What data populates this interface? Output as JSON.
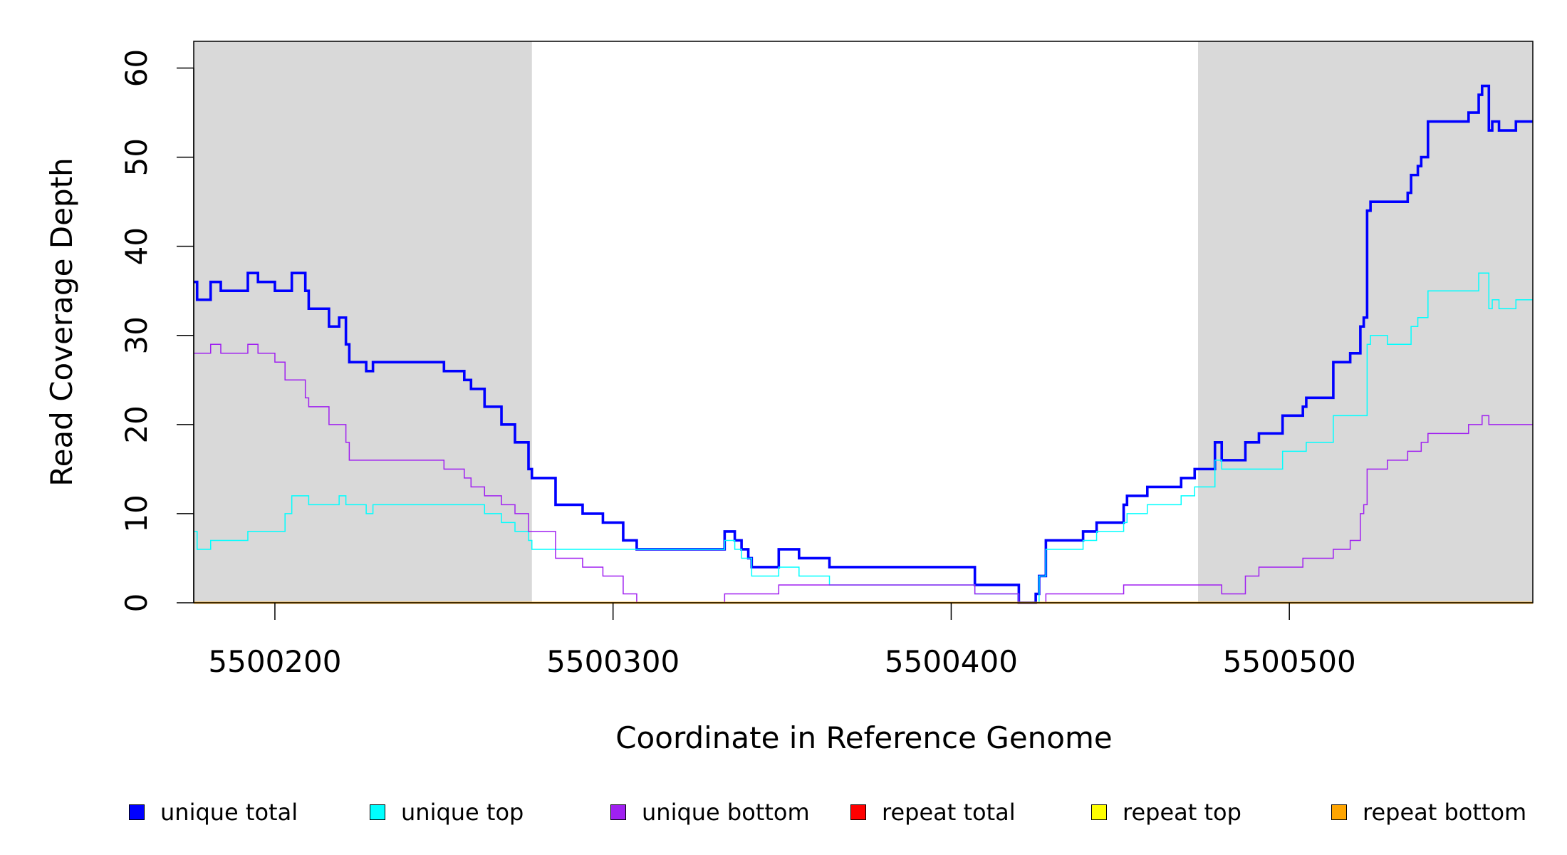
{
  "chart_data": {
    "type": "line",
    "step": true,
    "title": "",
    "xlabel": "Coordinate in Reference Genome",
    "ylabel": "Read Coverage Depth",
    "xlim": [
      5500176,
      5500572
    ],
    "ylim": [
      0,
      63
    ],
    "xticks": [
      5500200,
      5500300,
      5500400,
      5500500
    ],
    "xtick_labels": [
      "5500200",
      "5500300",
      "5500400",
      "5500500"
    ],
    "yticks": [
      0,
      10,
      20,
      30,
      40,
      50,
      60
    ],
    "ytick_labels": [
      "0",
      "10",
      "20",
      "30",
      "40",
      "50",
      "60"
    ],
    "grid": false,
    "legend_position": "bottom",
    "shaded_regions": [
      {
        "from": 5500176,
        "to": 5500276,
        "color": "#d9d9d9"
      },
      {
        "from": 5500473,
        "to": 5500572,
        "color": "#d9d9d9"
      }
    ],
    "series": [
      {
        "name": "unique total",
        "color": "#0000ff",
        "width": "bold",
        "points": [
          [
            5500176,
            36
          ],
          [
            5500177,
            34
          ],
          [
            5500181,
            36
          ],
          [
            5500184,
            35
          ],
          [
            5500192,
            37
          ],
          [
            5500195,
            36
          ],
          [
            5500200,
            35
          ],
          [
            5500205,
            37
          ],
          [
            5500209,
            35
          ],
          [
            5500210,
            33
          ],
          [
            5500216,
            31
          ],
          [
            5500219,
            32
          ],
          [
            5500221,
            29
          ],
          [
            5500222,
            27
          ],
          [
            5500227,
            26
          ],
          [
            5500229,
            27
          ],
          [
            5500250,
            26
          ],
          [
            5500256,
            25
          ],
          [
            5500258,
            24
          ],
          [
            5500262,
            22
          ],
          [
            5500267,
            20
          ],
          [
            5500271,
            18
          ],
          [
            5500275,
            15
          ],
          [
            5500276,
            14
          ],
          [
            5500283,
            11
          ],
          [
            5500291,
            10
          ],
          [
            5500297,
            9
          ],
          [
            5500303,
            7
          ],
          [
            5500307,
            6
          ],
          [
            5500333,
            8
          ],
          [
            5500336,
            7
          ],
          [
            5500338,
            6
          ],
          [
            5500340,
            5
          ],
          [
            5500341,
            4
          ],
          [
            5500349,
            6
          ],
          [
            5500355,
            5
          ],
          [
            5500364,
            4
          ],
          [
            5500407,
            2
          ],
          [
            5500420,
            0
          ],
          [
            5500425,
            1
          ],
          [
            5500426,
            3
          ],
          [
            5500428,
            7
          ],
          [
            5500439,
            8
          ],
          [
            5500443,
            9
          ],
          [
            5500451,
            11
          ],
          [
            5500452,
            12
          ],
          [
            5500458,
            13
          ],
          [
            5500468,
            14
          ],
          [
            5500472,
            15
          ],
          [
            5500478,
            18
          ],
          [
            5500480,
            16
          ],
          [
            5500487,
            18
          ],
          [
            5500491,
            19
          ],
          [
            5500498,
            21
          ],
          [
            5500504,
            22
          ],
          [
            5500505,
            23
          ],
          [
            5500513,
            27
          ],
          [
            5500518,
            28
          ],
          [
            5500521,
            31
          ],
          [
            5500522,
            32
          ],
          [
            5500523,
            44
          ],
          [
            5500524,
            45
          ],
          [
            5500535,
            46
          ],
          [
            5500536,
            48
          ],
          [
            5500538,
            49
          ],
          [
            5500539,
            50
          ],
          [
            5500541,
            54
          ],
          [
            5500553,
            55
          ],
          [
            5500556,
            57
          ],
          [
            5500557,
            58
          ],
          [
            5500559,
            53
          ],
          [
            5500560,
            54
          ],
          [
            5500562,
            53
          ],
          [
            5500567,
            54
          ]
        ]
      },
      {
        "name": "unique top",
        "color": "#00ffff",
        "width": "thin",
        "points": [
          [
            5500176,
            8
          ],
          [
            5500177,
            6
          ],
          [
            5500181,
            7
          ],
          [
            5500192,
            8
          ],
          [
            5500203,
            10
          ],
          [
            5500205,
            12
          ],
          [
            5500210,
            11
          ],
          [
            5500219,
            12
          ],
          [
            5500221,
            11
          ],
          [
            5500227,
            10
          ],
          [
            5500229,
            11
          ],
          [
            5500262,
            10
          ],
          [
            5500267,
            9
          ],
          [
            5500271,
            8
          ],
          [
            5500275,
            7
          ],
          [
            5500276,
            6
          ],
          [
            5500333,
            7
          ],
          [
            5500336,
            6
          ],
          [
            5500338,
            5
          ],
          [
            5500341,
            3
          ],
          [
            5500349,
            4
          ],
          [
            5500355,
            3
          ],
          [
            5500364,
            2
          ],
          [
            5500407,
            1
          ],
          [
            5500420,
            0
          ],
          [
            5500426,
            3
          ],
          [
            5500428,
            6
          ],
          [
            5500439,
            7
          ],
          [
            5500443,
            8
          ],
          [
            5500451,
            9
          ],
          [
            5500452,
            10
          ],
          [
            5500458,
            11
          ],
          [
            5500468,
            12
          ],
          [
            5500472,
            13
          ],
          [
            5500478,
            16
          ],
          [
            5500480,
            15
          ],
          [
            5500498,
            17
          ],
          [
            5500505,
            18
          ],
          [
            5500513,
            21
          ],
          [
            5500523,
            29
          ],
          [
            5500524,
            30
          ],
          [
            5500529,
            29
          ],
          [
            5500536,
            31
          ],
          [
            5500538,
            32
          ],
          [
            5500541,
            35
          ],
          [
            5500556,
            37
          ],
          [
            5500559,
            33
          ],
          [
            5500560,
            34
          ],
          [
            5500562,
            33
          ],
          [
            5500567,
            34
          ]
        ]
      },
      {
        "name": "unique bottom",
        "color": "#a020f0",
        "width": "thin",
        "points": [
          [
            5500176,
            28
          ],
          [
            5500181,
            29
          ],
          [
            5500184,
            28
          ],
          [
            5500192,
            29
          ],
          [
            5500195,
            28
          ],
          [
            5500200,
            27
          ],
          [
            5500203,
            25
          ],
          [
            5500209,
            23
          ],
          [
            5500210,
            22
          ],
          [
            5500216,
            20
          ],
          [
            5500221,
            18
          ],
          [
            5500222,
            16
          ],
          [
            5500250,
            15
          ],
          [
            5500256,
            14
          ],
          [
            5500258,
            13
          ],
          [
            5500262,
            12
          ],
          [
            5500267,
            11
          ],
          [
            5500271,
            10
          ],
          [
            5500275,
            8
          ],
          [
            5500283,
            5
          ],
          [
            5500291,
            4
          ],
          [
            5500297,
            3
          ],
          [
            5500303,
            1
          ],
          [
            5500307,
            0
          ],
          [
            5500333,
            1
          ],
          [
            5500349,
            2
          ],
          [
            5500407,
            1
          ],
          [
            5500420,
            0
          ],
          [
            5500428,
            1
          ],
          [
            5500451,
            2
          ],
          [
            5500480,
            1
          ],
          [
            5500487,
            3
          ],
          [
            5500491,
            4
          ],
          [
            5500504,
            5
          ],
          [
            5500513,
            6
          ],
          [
            5500518,
            7
          ],
          [
            5500521,
            10
          ],
          [
            5500522,
            11
          ],
          [
            5500523,
            15
          ],
          [
            5500529,
            16
          ],
          [
            5500535,
            17
          ],
          [
            5500539,
            18
          ],
          [
            5500541,
            19
          ],
          [
            5500553,
            20
          ],
          [
            5500557,
            21
          ],
          [
            5500559,
            20
          ]
        ]
      },
      {
        "name": "repeat total",
        "color": "#ff0000",
        "width": "thin",
        "points": [
          [
            5500176,
            0
          ]
        ]
      },
      {
        "name": "repeat top",
        "color": "#ffff00",
        "width": "thin",
        "points": [
          [
            5500176,
            0
          ]
        ]
      },
      {
        "name": "repeat bottom",
        "color": "#ffa500",
        "width": "medium",
        "points": [
          [
            5500176,
            0
          ]
        ]
      }
    ]
  }
}
